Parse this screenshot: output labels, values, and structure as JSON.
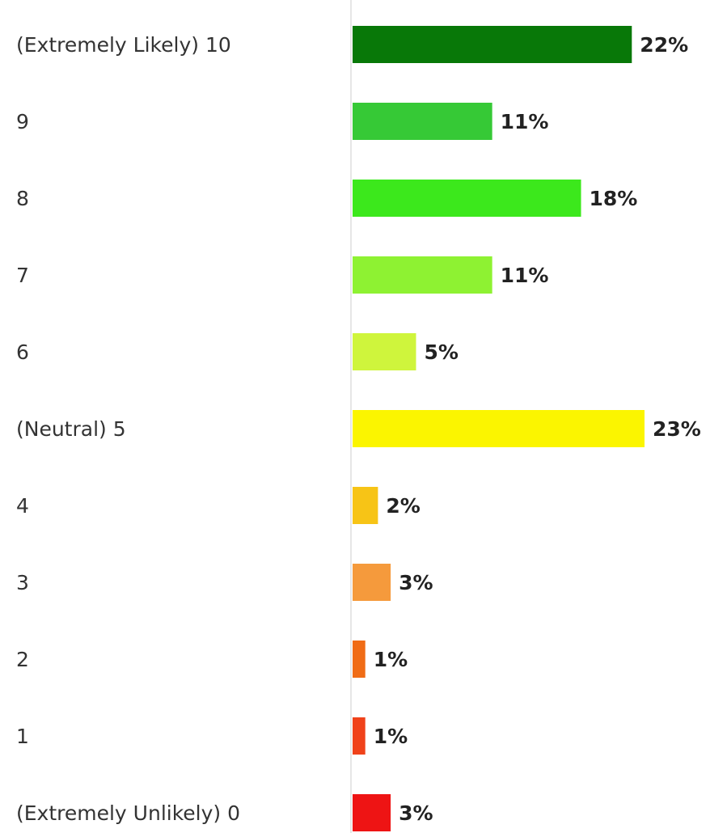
{
  "chart_data": {
    "type": "bar",
    "categories": [
      "(Extremely Likely) 10",
      "9",
      "8",
      "7",
      "6",
      "(Neutral) 5",
      "4",
      "3",
      "2",
      "1",
      "(Extremely Unlikely) 0"
    ],
    "values": [
      22,
      11,
      18,
      11,
      5,
      23,
      2,
      3,
      1,
      1,
      3
    ],
    "value_labels": [
      "22%",
      "11%",
      "18%",
      "11%",
      "5%",
      "23%",
      "2%",
      "3%",
      "1%",
      "1%",
      "3%"
    ],
    "colors": [
      "#087808",
      "#36c936",
      "#3ce81c",
      "#8ef232",
      "#cff53c",
      "#fbf500",
      "#f7c416",
      "#f59a3c",
      "#f06c16",
      "#f0421a",
      "#ee1414"
    ]
  }
}
